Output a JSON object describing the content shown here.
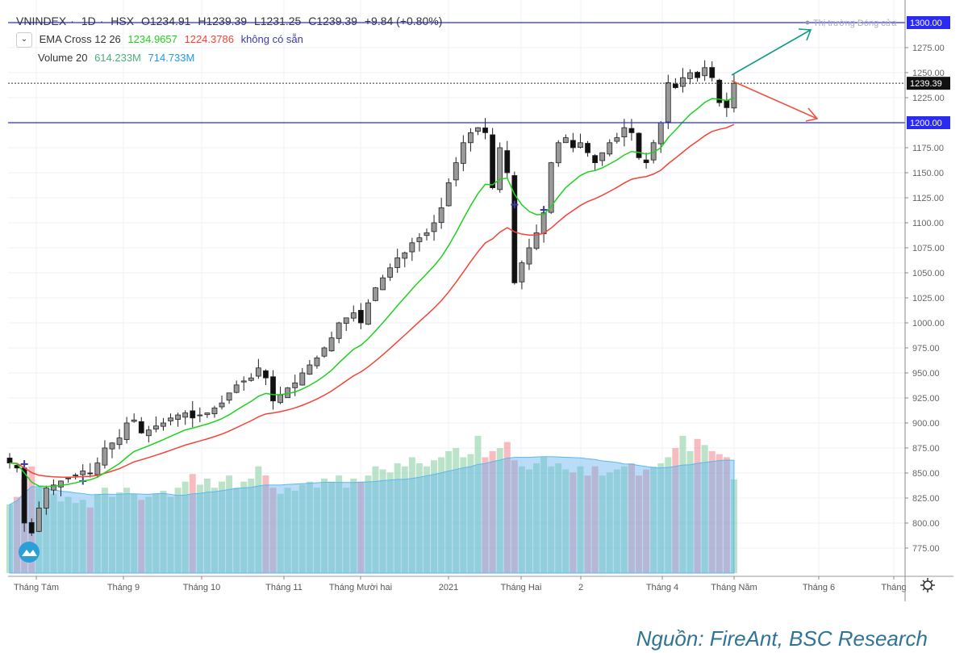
{
  "header": {
    "symbol": "VNINDEX",
    "interval": "1D",
    "exchange": "HSX",
    "open": "O1234.91",
    "high": "H1239.39",
    "low": "L1231.25",
    "close": "C1239.39",
    "change": "+9.84 (+0.80%)"
  },
  "indicators": {
    "ema": {
      "label": "EMA Cross 12 26",
      "fast": "1234.9657",
      "slow": "1224.3786",
      "cross": "không có sẵn",
      "fast_color": "#1fd11f",
      "slow_color": "#f44336",
      "cross_color": "#3a3aa8"
    },
    "volume": {
      "label": "Volume 20",
      "value": "614.233M",
      "ma": "714.733M",
      "value_color": "#4caf7a",
      "ma_color": "#2196f3"
    }
  },
  "annotations": {
    "market_status": "Thị trường Đóng cửa",
    "levels": [
      {
        "value": 1300,
        "label": "1300.00"
      },
      {
        "value": 1200,
        "label": "1200.00"
      }
    ],
    "last_price_label": "1239.39",
    "level_color": "#2a2af0",
    "up_arrow_color": "#139b8c",
    "down_arrow_color": "#f05040"
  },
  "footer": {
    "source": "Nguồn: FireAnt, BSC Research"
  },
  "chart_data": {
    "type": "candlestick",
    "title": "",
    "y_ticks": [
      "775.00",
      "800.00",
      "825.00",
      "850.00",
      "875.00",
      "900.00",
      "925.00",
      "950.00",
      "975.00",
      "1000.00",
      "1025.00",
      "1050.00",
      "1075.00",
      "1100.00",
      "1125.00",
      "1150.00",
      "1175.00",
      "1225.00",
      "1250.00",
      "1275.00"
    ],
    "ylim": [
      760,
      1310
    ],
    "x_ticks": [
      "Tháng Tám",
      "Tháng 9",
      "Tháng 10",
      "Tháng 11",
      "Tháng Mười hai",
      "2021",
      "Tháng Hai",
      "2",
      "Tháng 4",
      "Tháng Năm",
      "Tháng 6",
      "Tháng"
    ],
    "close": [
      860,
      855,
      800,
      790,
      815,
      835,
      838,
      842,
      845,
      848,
      852,
      850,
      860,
      875,
      880,
      885,
      900,
      903,
      890,
      893,
      897,
      900,
      905,
      908,
      910,
      905,
      908,
      910,
      915,
      920,
      930,
      938,
      942,
      945,
      955,
      945,
      922,
      928,
      935,
      940,
      950,
      958,
      965,
      975,
      985,
      1000,
      1005,
      1010,
      1000,
      1020,
      1035,
      1045,
      1055,
      1065,
      1070,
      1080,
      1085,
      1090,
      1100,
      1115,
      1140,
      1160,
      1180,
      1190,
      1195,
      1190,
      1135,
      1175,
      1150,
      1040,
      1060,
      1075,
      1090,
      1110,
      1160,
      1180,
      1185,
      1175,
      1180,
      1170,
      1160,
      1170,
      1180,
      1185,
      1195,
      1190,
      1165,
      1160,
      1180,
      1200,
      1240,
      1235,
      1245,
      1250,
      1245,
      1255,
      1245,
      1220,
      1215,
      1239.39
    ],
    "volume_millions": [
      450,
      500,
      620,
      700,
      560,
      480,
      520,
      470,
      500,
      460,
      480,
      430,
      520,
      560,
      500,
      530,
      560,
      520,
      480,
      500,
      520,
      540,
      500,
      560,
      600,
      650,
      580,
      620,
      560,
      600,
      640,
      560,
      600,
      620,
      700,
      640,
      560,
      520,
      560,
      540,
      580,
      600,
      560,
      620,
      600,
      640,
      560,
      620,
      600,
      640,
      700,
      680,
      660,
      720,
      700,
      760,
      720,
      700,
      740,
      760,
      800,
      820,
      760,
      780,
      900,
      760,
      800,
      820,
      860,
      740,
      700,
      680,
      720,
      760,
      700,
      720,
      680,
      660,
      700,
      640,
      700,
      640,
      660,
      680,
      700,
      720,
      640,
      680,
      700,
      720,
      760,
      820,
      900,
      800,
      880,
      840,
      800,
      780,
      760,
      614.233
    ],
    "series": [
      {
        "name": "EMA 12"
      },
      {
        "name": "EMA 26"
      },
      {
        "name": "Volume MA 20"
      }
    ]
  }
}
